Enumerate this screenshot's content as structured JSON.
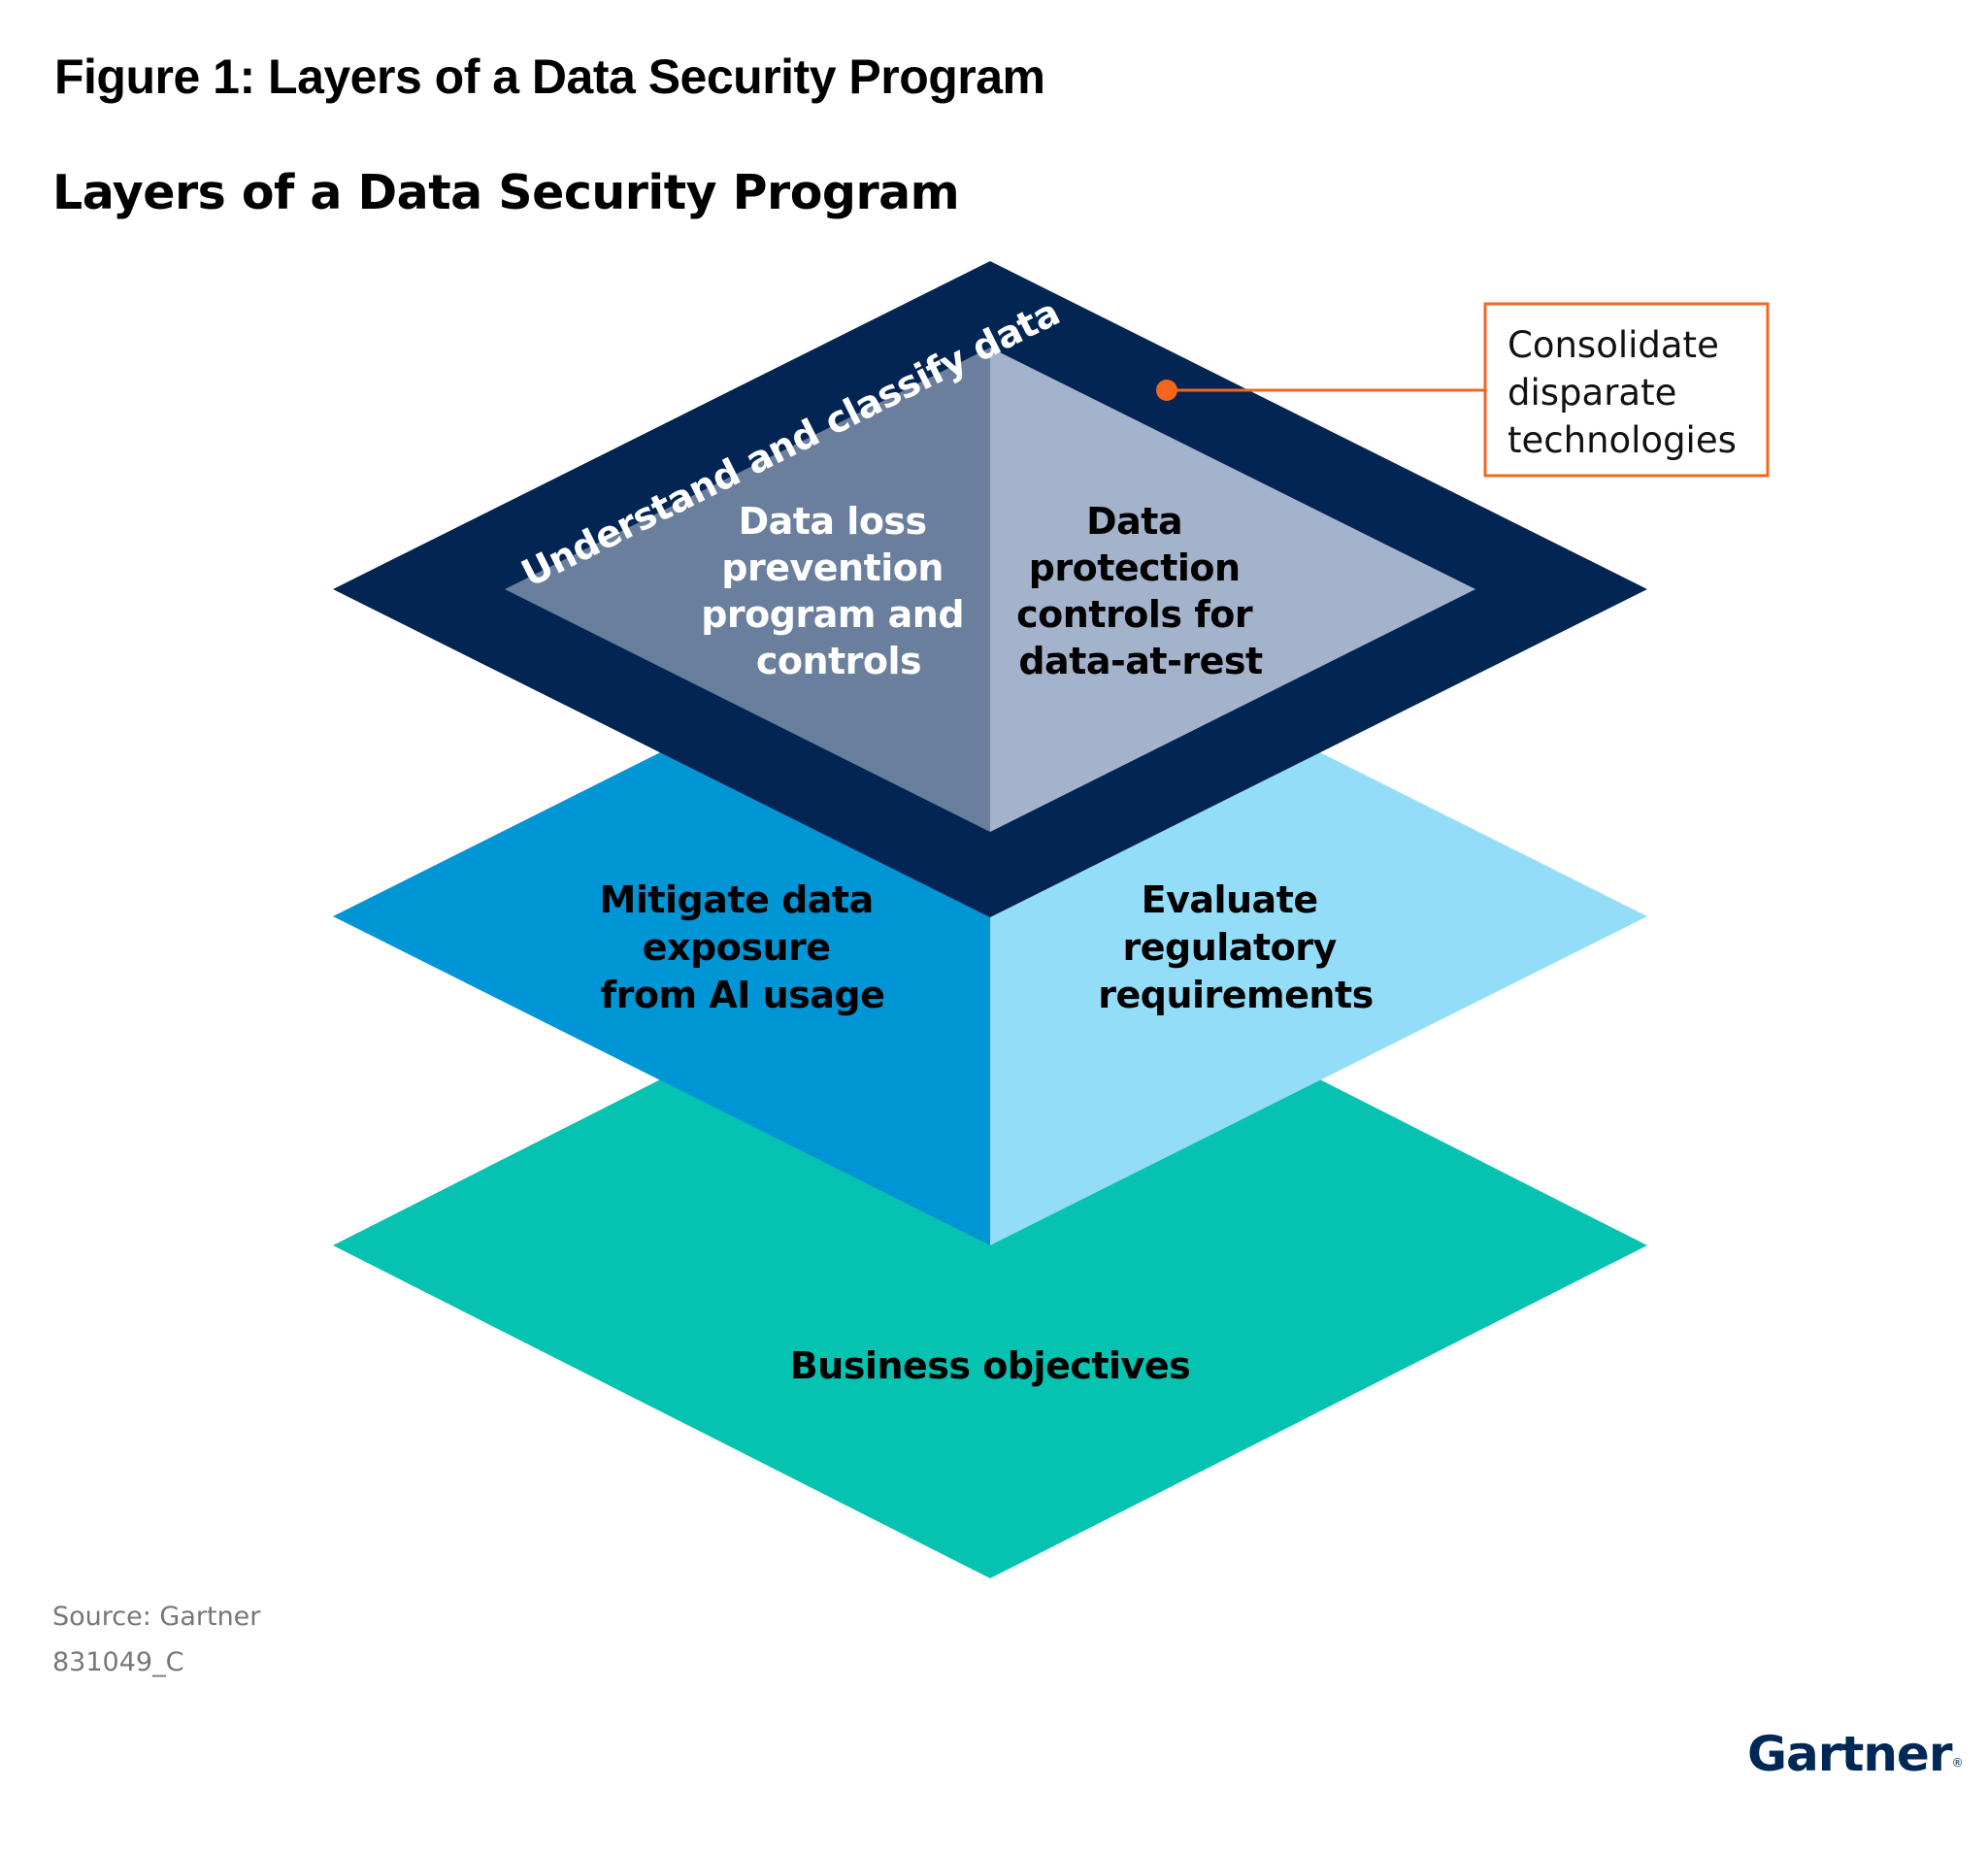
{
  "figure_caption": "Figure 1: Layers of a Data Security Program",
  "diagram_title": "Layers of a Data Security Program",
  "layers": {
    "top_frame": {
      "label": "Understand and classify data",
      "color": "#022554",
      "left_panel": {
        "lines": [
          "Data loss",
          "prevention",
          "program and",
          "controls"
        ],
        "color": "#6A7E9E",
        "text_color": "#FFFFFF"
      },
      "right_panel": {
        "lines": [
          "Data",
          "protection",
          "controls for",
          "data-at-rest"
        ],
        "color": "#A3B3CB",
        "text_color": "#000000"
      }
    },
    "middle": {
      "left": {
        "lines": [
          "Mitigate data",
          "exposure",
          "from AI usage"
        ],
        "color": "#0096D6"
      },
      "right": {
        "lines": [
          "Evaluate",
          "regulatory",
          "requirements"
        ],
        "color": "#93DDF8"
      }
    },
    "bottom": {
      "label": "Business objectives",
      "color": "#06C2B0"
    }
  },
  "callout": {
    "lines": [
      "Consolidate",
      "disparate",
      "technologies"
    ],
    "color": "#F4661E"
  },
  "source": "Source: Gartner",
  "doc_id": "831049_C",
  "logo": "Gartner"
}
